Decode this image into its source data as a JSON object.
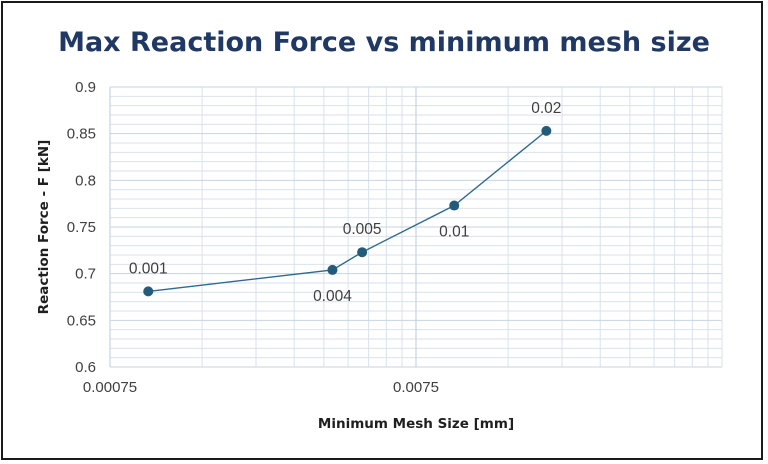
{
  "chart_data": {
    "type": "scatter",
    "title": "Max Reaction Force vs minimum mesh size",
    "xlabel": "Minimum Mesh Size [mm]",
    "ylabel": "Reaction Force - F [kN]",
    "xscale": "log",
    "xlim": [
      0.00075,
      0.075
    ],
    "ylim": [
      0.6,
      0.9
    ],
    "x_tick_labels": [
      "0.00075",
      "0.0075"
    ],
    "y_tick_labels": [
      "0.9",
      "0.85",
      "0.8",
      "0.75",
      "0.7",
      "0.65",
      "0.6"
    ],
    "y_ticks": [
      0.9,
      0.85,
      0.8,
      0.75,
      0.7,
      0.65,
      0.6
    ],
    "x_ticks": [
      0.00075,
      0.0075
    ],
    "series": [
      {
        "name": "Max Reaction Force",
        "x": [
          0.001,
          0.004,
          0.005,
          0.01,
          0.02
        ],
        "y": [
          0.681,
          0.704,
          0.723,
          0.773,
          0.853
        ],
        "point_labels": [
          "0.001",
          "0.004",
          "0.005",
          "0.01",
          "0.02"
        ],
        "label_positions": [
          "above",
          "below",
          "above",
          "below",
          "above"
        ]
      }
    ],
    "grid": true,
    "colors": {
      "line": "#2e6a8f",
      "marker": "#245b7a",
      "grid": "#d9e2ec",
      "major_grid": "#c6d4e2",
      "axis": "#bfbfbf"
    }
  }
}
